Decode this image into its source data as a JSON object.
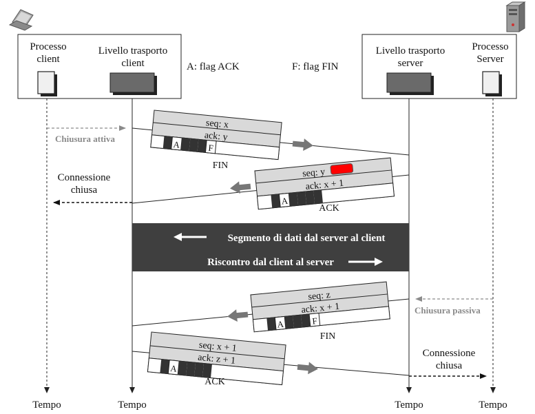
{
  "client_box": {
    "process_label": [
      "Processo",
      "client"
    ],
    "transport_label": [
      "Livello trasporto",
      "client"
    ]
  },
  "server_box": {
    "transport_label": [
      "Livello trasporto",
      "server"
    ],
    "process_label": [
      "Processo",
      "Server"
    ]
  },
  "legend": {
    "ack_flag": "A: flag ACK",
    "fin_flag": "F: flag FIN"
  },
  "segments": {
    "fin1": {
      "seq": "seq: x",
      "ack": "ack: y",
      "flag_a": "A",
      "flag_f": "F",
      "caption": "FIN"
    },
    "ack1": {
      "seq": "seq: y",
      "ack": "ack: x + 1",
      "flag_a": "A",
      "caption": "ACK"
    },
    "fin2": {
      "seq": "seq: z",
      "ack": "ack: x + 1",
      "flag_a": "A",
      "flag_f": "F",
      "caption": "FIN"
    },
    "ack2": {
      "seq": "seq: x + 1",
      "ack": "ack: z + 1",
      "flag_a": "A",
      "caption": "ACK"
    }
  },
  "labels": {
    "active_close": "Chiusura attiva",
    "passive_close": "Chiusura passiva",
    "conn_closed_client": [
      "Connessione",
      "chiusa"
    ],
    "conn_closed_server": [
      "Connessione",
      "chiusa"
    ]
  },
  "data_band": {
    "line1": "Segmento di dati dal server al client",
    "line2": "Riscontro dal client al server"
  },
  "time_labels": [
    "Tempo",
    "Tempo",
    "Tempo",
    "Tempo"
  ],
  "colors": {
    "band": "#3f3f3f",
    "segment_fill": "#d9d9d9",
    "highlight": "#ff0000",
    "dark_cell": "#333333"
  }
}
